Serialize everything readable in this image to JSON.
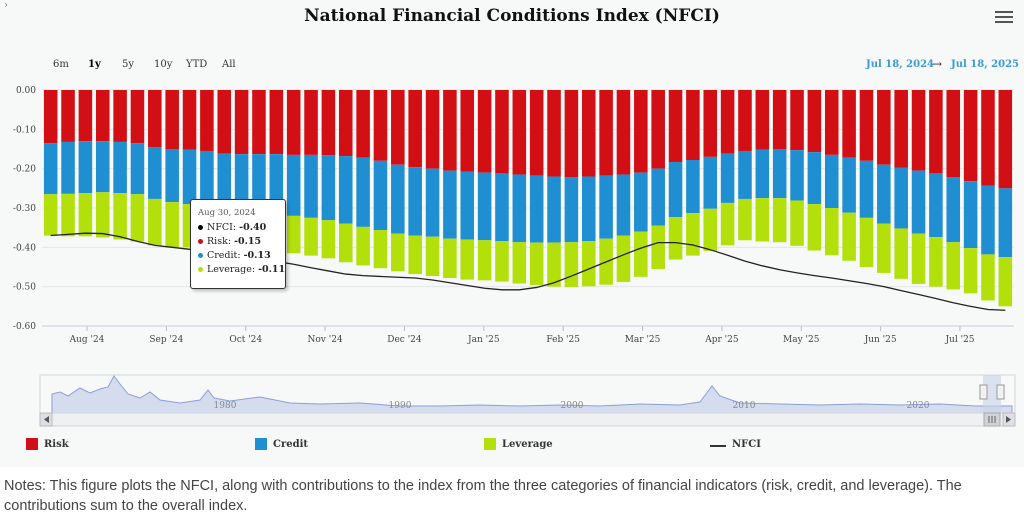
{
  "title": "National Financial Conditions Index (NFCI)",
  "corner_arrow": "›",
  "menu_icon": "hamburger-menu-icon",
  "range_buttons": [
    "6m",
    "1y",
    "5y",
    "10y",
    "YTD",
    "All"
  ],
  "selected_range": "1y",
  "date_range": {
    "from": "Jul 18, 2024",
    "to": "Jul 18, 2025",
    "arrow": "→"
  },
  "colors": {
    "risk": "#d10f14",
    "credit": "#1f8fd1",
    "leverage": "#b3df0b",
    "nfci": "#222222"
  },
  "tooltip": {
    "date": "Aug 30, 2024",
    "rows": [
      {
        "label": "NFCI:",
        "value": "-0.40",
        "color": "#000000"
      },
      {
        "label": "Risk:",
        "value": "-0.15",
        "color": "#d10f14"
      },
      {
        "label": "Credit:",
        "value": "-0.13",
        "color": "#1f8fd1"
      },
      {
        "label": "Leverage:",
        "value": "-0.11",
        "color": "#b3df0b"
      }
    ]
  },
  "legend": [
    {
      "label": "Risk",
      "color": "#d10f14",
      "kind": "swatch"
    },
    {
      "label": "Credit",
      "color": "#1f8fd1",
      "kind": "swatch"
    },
    {
      "label": "Leverage",
      "color": "#b3df0b",
      "kind": "swatch"
    },
    {
      "label": "NFCI",
      "color": "#222222",
      "kind": "line"
    }
  ],
  "navigator": {
    "year_labels": [
      "1980",
      "1990",
      "2000",
      "2010",
      "2020"
    ]
  },
  "notes": "Notes: This figure plots the NFCI, along with contributions to the index from the three categories of financial indicators (risk, credit, and leverage). The contributions sum to the overall index.",
  "chart_data": {
    "type": "bar",
    "stacked": true,
    "ylim": [
      -0.6,
      0.0
    ],
    "y_ticks": [
      "0.00",
      "-0.10",
      "-0.20",
      "-0.30",
      "-0.40",
      "-0.50",
      "-0.60"
    ],
    "x_ticks": [
      "Aug '24",
      "Sep '24",
      "Oct '24",
      "Nov '24",
      "Dec '24",
      "Jan '25",
      "Feb '25",
      "Mar '25",
      "Apr '25",
      "May '25",
      "Jun '25",
      "Jul '25"
    ],
    "grid": true,
    "series": [
      {
        "name": "Risk",
        "values": [
          -0.135,
          -0.132,
          -0.13,
          -0.13,
          -0.132,
          -0.135,
          -0.145,
          -0.15,
          -0.152,
          -0.155,
          -0.162,
          -0.163,
          -0.163,
          -0.163,
          -0.165,
          -0.165,
          -0.166,
          -0.168,
          -0.172,
          -0.18,
          -0.19,
          -0.196,
          -0.2,
          -0.205,
          -0.208,
          -0.21,
          -0.212,
          -0.215,
          -0.218,
          -0.22,
          -0.222,
          -0.22,
          -0.218,
          -0.215,
          -0.21,
          -0.2,
          -0.183,
          -0.178,
          -0.17,
          -0.162,
          -0.155,
          -0.152,
          -0.15,
          -0.153,
          -0.158,
          -0.165,
          -0.172,
          -0.18,
          -0.19,
          -0.197,
          -0.205,
          -0.212,
          -0.222,
          -0.232,
          -0.243,
          -0.25
        ]
      },
      {
        "name": "Credit",
        "values": [
          -0.13,
          -0.132,
          -0.132,
          -0.13,
          -0.13,
          -0.13,
          -0.132,
          -0.135,
          -0.138,
          -0.14,
          -0.143,
          -0.145,
          -0.148,
          -0.152,
          -0.155,
          -0.16,
          -0.165,
          -0.172,
          -0.176,
          -0.176,
          -0.175,
          -0.174,
          -0.173,
          -0.173,
          -0.172,
          -0.172,
          -0.172,
          -0.172,
          -0.17,
          -0.168,
          -0.165,
          -0.164,
          -0.16,
          -0.155,
          -0.15,
          -0.145,
          -0.14,
          -0.135,
          -0.132,
          -0.125,
          -0.122,
          -0.123,
          -0.125,
          -0.128,
          -0.132,
          -0.135,
          -0.14,
          -0.145,
          -0.15,
          -0.155,
          -0.16,
          -0.162,
          -0.165,
          -0.17,
          -0.175,
          -0.175
        ]
      },
      {
        "name": "Leverage",
        "values": [
          -0.105,
          -0.108,
          -0.11,
          -0.115,
          -0.118,
          -0.12,
          -0.118,
          -0.115,
          -0.11,
          -0.11,
          -0.102,
          -0.098,
          -0.095,
          -0.095,
          -0.095,
          -0.096,
          -0.097,
          -0.098,
          -0.098,
          -0.097,
          -0.096,
          -0.098,
          -0.1,
          -0.1,
          -0.102,
          -0.102,
          -0.103,
          -0.105,
          -0.108,
          -0.112,
          -0.114,
          -0.115,
          -0.117,
          -0.118,
          -0.115,
          -0.11,
          -0.108,
          -0.108,
          -0.107,
          -0.108,
          -0.105,
          -0.11,
          -0.112,
          -0.115,
          -0.118,
          -0.12,
          -0.122,
          -0.125,
          -0.125,
          -0.128,
          -0.128,
          -0.126,
          -0.12,
          -0.115,
          -0.117,
          -0.125
        ]
      }
    ],
    "nfci": [
      -0.37,
      -0.367,
      -0.364,
      -0.365,
      -0.373,
      -0.385,
      -0.395,
      -0.4,
      -0.405,
      -0.412,
      -0.418,
      -0.424,
      -0.43,
      -0.436,
      -0.443,
      -0.452,
      -0.46,
      -0.468,
      -0.472,
      -0.474,
      -0.476,
      -0.478,
      -0.483,
      -0.49,
      -0.497,
      -0.504,
      -0.508,
      -0.508,
      -0.502,
      -0.49,
      -0.473,
      -0.455,
      -0.437,
      -0.419,
      -0.402,
      -0.388,
      -0.388,
      -0.394,
      -0.406,
      -0.42,
      -0.435,
      -0.447,
      -0.457,
      -0.465,
      -0.472,
      -0.478,
      -0.485,
      -0.492,
      -0.5,
      -0.51,
      -0.52,
      -0.53,
      -0.541,
      -0.55,
      -0.558,
      -0.56
    ]
  }
}
